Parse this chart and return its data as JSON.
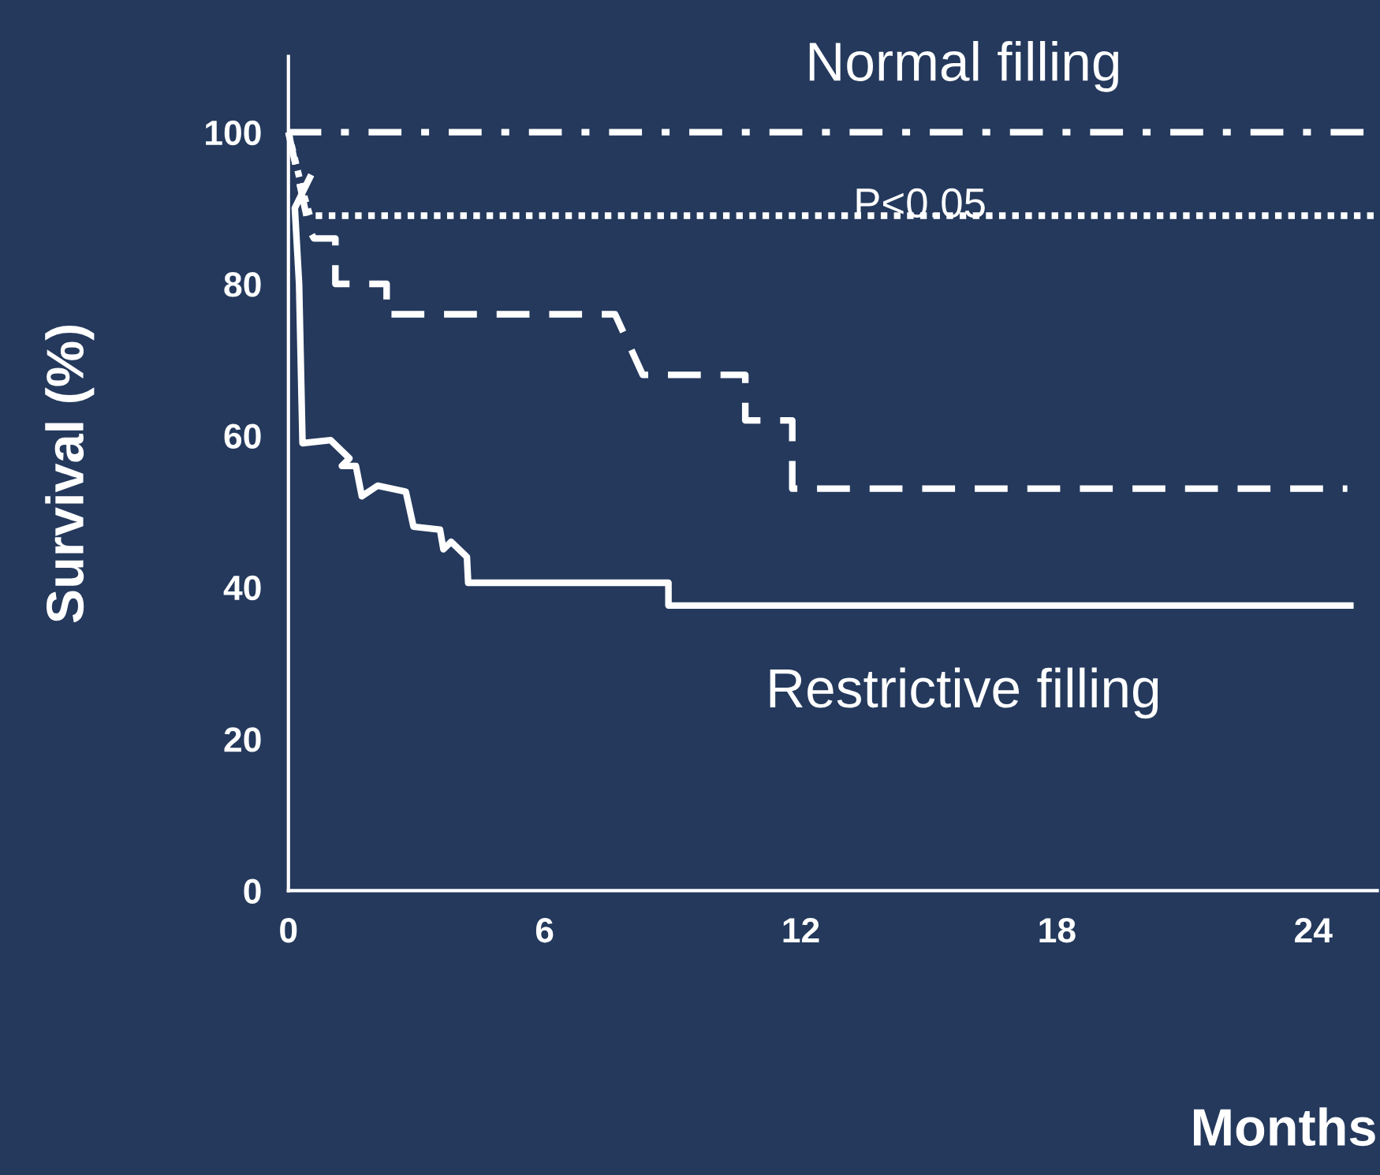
{
  "chart_data": {
    "type": "line",
    "xlabel": "Months",
    "ylabel": "Survival (%)",
    "xlim": [
      0,
      25.5
    ],
    "ylim": [
      0,
      110
    ],
    "xticks": [
      0,
      6,
      12,
      18,
      24
    ],
    "yticks": [
      0,
      20,
      40,
      60,
      80,
      100
    ],
    "legend": false,
    "marker": "none",
    "annotations": [
      "P<0.05"
    ],
    "series": [
      {
        "name": "Normal filling",
        "color": "#ffffff",
        "line_style": "dashdot",
        "x": [
          0,
          25.5
        ],
        "values": [
          100,
          100
        ]
      },
      {
        "color": "#ffffff",
        "line_style": "dotted",
        "x": [
          0,
          0.3,
          0.5,
          25.5
        ],
        "values": [
          100,
          93,
          89,
          89
        ]
      },
      {
        "color": "#ffffff",
        "line_style": "dashed",
        "x": [
          0,
          0.5,
          0.6,
          1.1,
          1.1,
          2.3,
          2.3,
          7.65,
          8.3,
          10.7,
          10.7,
          11.8,
          11.8,
          24.8
        ],
        "values": [
          100,
          87,
          86,
          86,
          80,
          80,
          76,
          76,
          68,
          68,
          62,
          62,
          53,
          53
        ]
      },
      {
        "name": "Restrictive filling",
        "color": "#ffffff",
        "line_style": "solid",
        "x": [
          0.5,
          0.15,
          0.25,
          0.33,
          0.99,
          1.43,
          1.25,
          1.58,
          1.72,
          2.09,
          2.75,
          2.93,
          3.55,
          3.63,
          3.81,
          4.18,
          4.21,
          8.9,
          8.9,
          24.87
        ],
        "values": [
          94,
          90,
          80,
          59,
          59.4,
          57,
          56,
          56,
          52,
          53.4,
          52.6,
          48,
          47.6,
          45,
          46,
          44,
          40.6,
          40.6,
          37.6,
          37.6
        ]
      }
    ]
  }
}
